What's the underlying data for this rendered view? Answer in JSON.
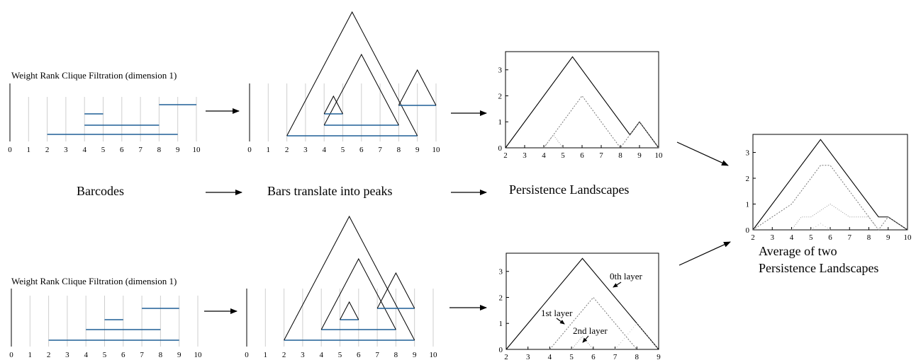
{
  "captions": {
    "filtration_top": "Weight Rank Clique Filtration (dimension 1)",
    "filtration_bottom": "Weight Rank Clique Filtration (dimension 1)",
    "barcodes": "Barcodes",
    "bars_to_peaks": "Bars translate into peaks",
    "landscapes": "Persistence Landscapes",
    "average_line1": "Average of two",
    "average_line2": "Persistence Landscapes",
    "layer0": "0th layer",
    "layer1": "1st layer",
    "layer2": "2nd layer"
  },
  "barcode_ticks": [
    "0",
    "1",
    "2",
    "3",
    "4",
    "5",
    "6",
    "7",
    "8",
    "9",
    "10"
  ],
  "barcodes_top": [
    [
      2,
      9
    ],
    [
      4,
      8
    ],
    [
      4,
      5
    ],
    [
      8,
      10
    ]
  ],
  "barcodes_bottom": [
    [
      2,
      9
    ],
    [
      4,
      8
    ],
    [
      5,
      6
    ],
    [
      7,
      9
    ]
  ],
  "landscape_top": {
    "xticks": [
      "2",
      "3",
      "4",
      "5",
      "6",
      "7",
      "8",
      "9",
      "10"
    ],
    "yticks": [
      "0",
      "1",
      "2",
      "3"
    ],
    "layer0": [
      [
        2,
        0
      ],
      [
        5.5,
        3.5
      ],
      [
        8.5,
        0.5
      ],
      [
        9,
        1
      ],
      [
        10,
        0
      ]
    ],
    "layer1": [
      [
        4,
        0
      ],
      [
        6,
        2
      ],
      [
        8,
        0
      ],
      [
        9,
        1
      ],
      [
        10,
        0
      ]
    ],
    "layer2": [
      [
        4,
        0
      ],
      [
        4.5,
        0.5
      ],
      [
        5,
        0
      ]
    ]
  },
  "landscape_bottom": {
    "xticks": [
      "2",
      "3",
      "4",
      "5",
      "6",
      "7",
      "8",
      "9"
    ],
    "yticks": [
      "0",
      "1",
      "2",
      "3"
    ],
    "layer0": [
      [
        2,
        0
      ],
      [
        5.5,
        3.5
      ],
      [
        9,
        0
      ]
    ],
    "layer1": [
      [
        4,
        0
      ],
      [
        6,
        2
      ],
      [
        8,
        0
      ]
    ],
    "layer2": [
      [
        5,
        0
      ],
      [
        5.5,
        0.5
      ],
      [
        6,
        0
      ]
    ],
    "layer3": [
      [
        7,
        0
      ],
      [
        8,
        1
      ],
      [
        9,
        0
      ]
    ]
  },
  "landscape_avg": {
    "xticks": [
      "2",
      "3",
      "4",
      "5",
      "6",
      "7",
      "8",
      "9",
      "10"
    ],
    "yticks": [
      "0",
      "1",
      "2",
      "3"
    ],
    "layer0": [
      [
        2,
        0
      ],
      [
        5.5,
        3.5
      ],
      [
        8.5,
        0.5
      ],
      [
        9,
        0.5
      ],
      [
        10,
        0
      ]
    ],
    "layer1": [
      [
        2,
        0
      ],
      [
        4,
        1
      ],
      [
        5.5,
        2.5
      ],
      [
        6,
        2.5
      ],
      [
        8.5,
        0
      ],
      [
        9,
        0.5
      ],
      [
        10,
        0
      ]
    ],
    "layer2": [
      [
        4,
        0
      ],
      [
        4.5,
        0.5
      ],
      [
        5,
        0.5
      ],
      [
        6,
        1
      ],
      [
        7,
        0.5
      ],
      [
        8,
        0.5
      ],
      [
        8.5,
        0
      ]
    ],
    "layer3": [
      [
        5,
        0
      ],
      [
        5.5,
        0.25
      ],
      [
        6,
        0
      ]
    ]
  }
}
